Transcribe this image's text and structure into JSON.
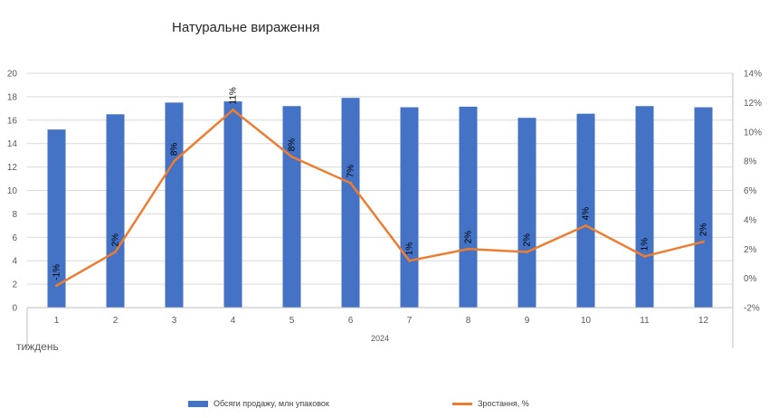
{
  "chart_data": {
    "type": "bar",
    "title": "Натуральне вираження",
    "xlabel": "тиждень",
    "x_group_label": "2024",
    "categories": [
      "1",
      "2",
      "3",
      "4",
      "5",
      "6",
      "7",
      "8",
      "9",
      "10",
      "11",
      "12"
    ],
    "y_left": {
      "min": 0,
      "max": 20,
      "step": 2,
      "ticks": [
        "0",
        "2",
        "4",
        "6",
        "8",
        "10",
        "12",
        "14",
        "16",
        "18",
        "20"
      ]
    },
    "y_right": {
      "min": -2,
      "max": 14,
      "step": 2,
      "ticks": [
        "-2%",
        "0%",
        "2%",
        "4%",
        "6%",
        "8%",
        "10%",
        "12%",
        "14%"
      ]
    },
    "series": [
      {
        "name": "Обсяги продажу, млн упаковок",
        "type": "bar",
        "color": "#4472C4",
        "values": [
          15.2,
          16.5,
          17.5,
          17.6,
          17.2,
          17.9,
          17.1,
          17.15,
          16.2,
          16.55,
          17.2,
          17.1
        ]
      },
      {
        "name": "Зростання, %",
        "type": "line",
        "color": "#ED7D31",
        "values": [
          -0.5,
          1.8,
          8.0,
          11.5,
          8.3,
          6.5,
          1.2,
          2.0,
          1.8,
          3.6,
          1.5,
          2.5
        ],
        "data_labels": [
          "-1%",
          "2%",
          "8%",
          "11%",
          "8%",
          "7%",
          "1%",
          "2%",
          "2%",
          "4%",
          "1%",
          "2%"
        ]
      }
    ],
    "grid": true,
    "legend_position": "bottom"
  }
}
